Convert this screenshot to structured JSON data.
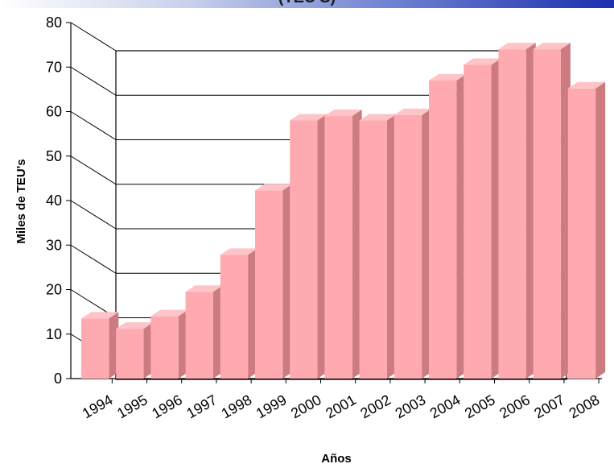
{
  "header": {
    "title_fragment": "(TEU'S)"
  },
  "chart_data": {
    "type": "bar",
    "title": "",
    "xlabel": "Años",
    "ylabel": "Miles de TEU's",
    "ylim": [
      0,
      80
    ],
    "yticks": [
      0,
      10,
      20,
      30,
      40,
      50,
      60,
      70,
      80
    ],
    "categories": [
      "1994",
      "1995",
      "1996",
      "1997",
      "1998",
      "1999",
      "2000",
      "2001",
      "2002",
      "2003",
      "2004",
      "2005",
      "2006",
      "2007",
      "2008"
    ],
    "values": [
      13.5,
      11.2,
      14,
      19.5,
      27.8,
      42.3,
      58,
      59,
      58,
      59.2,
      67,
      70.5,
      74,
      74,
      65.2
    ],
    "grid": true,
    "style": "3d",
    "colors": {
      "bar_front": "#ffaab0",
      "bar_top": "#ffc4c8",
      "bar_side": "#cc7b80",
      "gridline": "#000000"
    }
  }
}
